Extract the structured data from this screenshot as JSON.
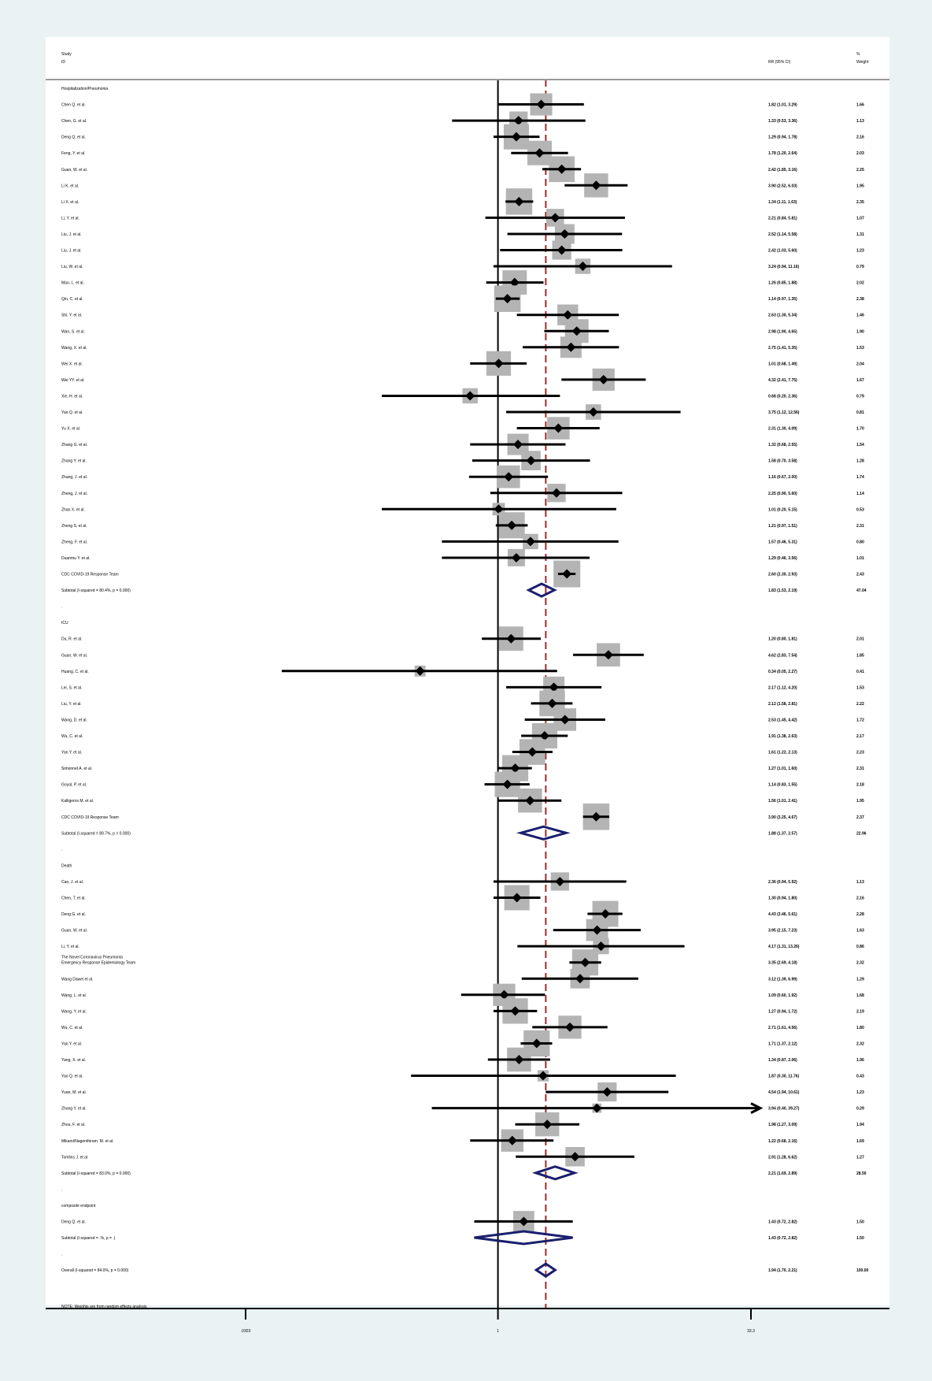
{
  "header": {
    "study_line1": "Study",
    "study_line2": "ID",
    "rr_label": "RR (95% CI)",
    "weight_line1": "%",
    "weight_line2": "Weight"
  },
  "footnote": "NOTE: Weights are from random effects analysis",
  "colors": {
    "background": "#eaf2f3",
    "panel": "#ffffff",
    "box": "#b4b4b4",
    "marker": "#000000",
    "diamond": "#1a1f6e",
    "reference_line": "#9b2b2b"
  },
  "chart_data": {
    "type": "forest",
    "x_scale": "log",
    "xlim": [
      0.0303,
      33.3
    ],
    "x_ticks": [
      {
        "value": 0.0303,
        "label": ".0303"
      },
      {
        "value": 1,
        "label": "1"
      },
      {
        "value": 33.3,
        "label": "33.3"
      }
    ],
    "null_line": 1,
    "overall_line": 1.94,
    "rows": [
      {
        "kind": "group",
        "label": "Hospitalization/Pneumonia"
      },
      {
        "kind": "study",
        "label": "Chen Q. et al.",
        "rr": 1.82,
        "lo": 1.01,
        "hi": 3.29,
        "rr_text": "1.82 (1.01, 3.29)",
        "weight": "1.66"
      },
      {
        "kind": "study",
        "label": "Chen, G. et al.",
        "rr": 1.33,
        "lo": 0.53,
        "hi": 3.36,
        "rr_text": "1.33 (0.53, 3.36)",
        "weight": "1.13"
      },
      {
        "kind": "study",
        "label": "Deng Q. et al.",
        "rr": 1.29,
        "lo": 0.94,
        "hi": 1.78,
        "rr_text": "1.29 (0.94, 1.78)",
        "weight": "2.16"
      },
      {
        "kind": "study",
        "label": "Feng, Y. et al.",
        "rr": 1.78,
        "lo": 1.2,
        "hi": 2.64,
        "rr_text": "1.78 (1.20, 2.64)",
        "weight": "2.03"
      },
      {
        "kind": "study",
        "label": "Guan, W. et al.",
        "rr": 2.42,
        "lo": 1.85,
        "hi": 3.16,
        "rr_text": "2.42 (1.85, 3.16)",
        "weight": "2.25"
      },
      {
        "kind": "study",
        "label": "Li K. et al.",
        "rr": 3.9,
        "lo": 2.52,
        "hi": 6.03,
        "rr_text": "3.90 (2.52, 6.03)",
        "weight": "1.95"
      },
      {
        "kind": "study",
        "label": "Li X. et al.",
        "rr": 1.34,
        "lo": 1.11,
        "hi": 1.63,
        "rr_text": "1.34 (1.11, 1.63)",
        "weight": "2.35"
      },
      {
        "kind": "study",
        "label": "Li, Y. et al.",
        "rr": 2.21,
        "lo": 0.84,
        "hi": 5.81,
        "rr_text": "2.21 (0.84, 5.81)",
        "weight": "1.07"
      },
      {
        "kind": "study",
        "label": "Liu, J. et al.",
        "rr": 2.52,
        "lo": 1.14,
        "hi": 5.58,
        "rr_text": "2.52 (1.14, 5.58)",
        "weight": "1.31"
      },
      {
        "kind": "study",
        "label": "Liu, J. et al.",
        "rr": 2.42,
        "lo": 1.03,
        "hi": 5.6,
        "rr_text": "2.42 (1.03, 5.60)",
        "weight": "1.23"
      },
      {
        "kind": "study",
        "label": "Liu, W. et al.",
        "rr": 3.24,
        "lo": 0.94,
        "hi": 11.16,
        "rr_text": "3.24 (0.94, 11.16)",
        "weight": "0.79"
      },
      {
        "kind": "study",
        "label": "Mao, L. et al.",
        "rr": 1.26,
        "lo": 0.85,
        "hi": 1.88,
        "rr_text": "1.26 (0.85, 1.88)",
        "weight": "2.02"
      },
      {
        "kind": "study",
        "label": "Qin, C. et al.",
        "rr": 1.14,
        "lo": 0.97,
        "hi": 1.35,
        "rr_text": "1.14 (0.97, 1.35)",
        "weight": "2.38"
      },
      {
        "kind": "study",
        "label": "Shi, Y. et al.",
        "rr": 2.63,
        "lo": 1.3,
        "hi": 5.34,
        "rr_text": "2.63 (1.30, 5.34)",
        "weight": "1.46"
      },
      {
        "kind": "study",
        "label": "Wan, S. et al.",
        "rr": 2.98,
        "lo": 1.9,
        "hi": 4.65,
        "rr_text": "2.98 (1.90, 4.65)",
        "weight": "1.90"
      },
      {
        "kind": "study",
        "label": "Wang, X. et al.",
        "rr": 2.75,
        "lo": 1.41,
        "hi": 5.35,
        "rr_text": "2.75 (1.41, 5.35)",
        "weight": "1.53"
      },
      {
        "kind": "study",
        "label": "Wei X. et al.",
        "rr": 1.01,
        "lo": 0.68,
        "hi": 1.49,
        "rr_text": "1.01 (0.68, 1.49)",
        "weight": "2.04"
      },
      {
        "kind": "study",
        "label": "Wei YY. et al.",
        "rr": 4.32,
        "lo": 2.41,
        "hi": 7.75,
        "rr_text": "4.32 (2.41, 7.75)",
        "weight": "1.67"
      },
      {
        "kind": "study",
        "label": "Xie, H. et al.",
        "rr": 0.68,
        "lo": 0.2,
        "hi": 2.36,
        "rr_text": "0.68 (0.20, 2.36)",
        "weight": "0.79"
      },
      {
        "kind": "study",
        "label": "Yao Q. et al.",
        "rr": 3.75,
        "lo": 1.12,
        "hi": 12.56,
        "rr_text": "3.75 (1.12, 12.56)",
        "weight": "0.81"
      },
      {
        "kind": "study",
        "label": "Yu X. et al.",
        "rr": 2.31,
        "lo": 1.3,
        "hi": 4.09,
        "rr_text": "2.31 (1.30, 4.09)",
        "weight": "1.70"
      },
      {
        "kind": "study",
        "label": "Zhang G. et al.",
        "rr": 1.32,
        "lo": 0.68,
        "hi": 2.55,
        "rr_text": "1.32 (0.68, 2.55)",
        "weight": "1.54"
      },
      {
        "kind": "study",
        "label": "Zhang Y. et al.",
        "rr": 1.58,
        "lo": 0.7,
        "hi": 3.58,
        "rr_text": "1.58 (0.70, 3.58)",
        "weight": "1.28"
      },
      {
        "kind": "study",
        "label": "Zhang, J. et al.",
        "rr": 1.16,
        "lo": 0.67,
        "hi": 2.0,
        "rr_text": "1.16 (0.67, 2.00)",
        "weight": "1.74"
      },
      {
        "kind": "study",
        "label": "Zheng, J. et al.",
        "rr": 2.25,
        "lo": 0.9,
        "hi": 5.6,
        "rr_text": "2.25 (0.90, 5.60)",
        "weight": "1.14"
      },
      {
        "kind": "study",
        "label": "Zhao X. et al.",
        "rr": 1.01,
        "lo": 0.2,
        "hi": 5.15,
        "rr_text": "1.01 (0.20, 5.15)",
        "weight": "0.53"
      },
      {
        "kind": "study",
        "label": "Zheng S. et al.",
        "rr": 1.21,
        "lo": 0.97,
        "hi": 1.51,
        "rr_text": "1.21 (0.97, 1.51)",
        "weight": "2.31"
      },
      {
        "kind": "study",
        "label": "Zheng, F. et al.",
        "rr": 1.57,
        "lo": 0.46,
        "hi": 5.31,
        "rr_text": "1.57 (0.46, 5.31)",
        "weight": "0.80"
      },
      {
        "kind": "study",
        "label": "Duanmu Y. et al.",
        "rr": 1.29,
        "lo": 0.46,
        "hi": 3.56,
        "rr_text": "1.29 (0.46, 3.56)",
        "weight": "1.01"
      },
      {
        "kind": "study",
        "label": "CDC COVID-19 Response Team",
        "rr": 2.6,
        "lo": 2.3,
        "hi": 2.93,
        "rr_text": "2.60 (2.30, 2.93)",
        "weight": "2.43"
      },
      {
        "kind": "subtotal",
        "label": "Subtotal  (I-squared = 80.4%, p = 0.000)",
        "rr": 1.83,
        "lo": 1.53,
        "hi": 2.19,
        "rr_text": "1.83 (1.53, 2.19)",
        "weight": "47.04"
      },
      {
        "kind": "spacer",
        "label": "."
      },
      {
        "kind": "group",
        "label": "ICU"
      },
      {
        "kind": "study",
        "label": "Du, R. et al.",
        "rr": 1.2,
        "lo": 0.8,
        "hi": 1.81,
        "rr_text": "1.20 (0.80, 1.81)",
        "weight": "2.01"
      },
      {
        "kind": "study",
        "label": "Guan, W. et al.",
        "rr": 4.62,
        "lo": 2.83,
        "hi": 7.54,
        "rr_text": "4.62 (2.83, 7.54)",
        "weight": "1.85"
      },
      {
        "kind": "study",
        "label": "Huang, C. et al.",
        "rr": 0.34,
        "lo": 0.05,
        "hi": 2.27,
        "rr_text": "0.34 (0.05, 2.27)",
        "weight": "0.41"
      },
      {
        "kind": "study",
        "label": "Lei, S. et al.",
        "rr": 2.17,
        "lo": 1.12,
        "hi": 4.2,
        "rr_text": "2.17 (1.12, 4.20)",
        "weight": "1.53"
      },
      {
        "kind": "study",
        "label": "Liu, Y. et al.",
        "rr": 2.12,
        "lo": 1.58,
        "hi": 2.81,
        "rr_text": "2.12 (1.58, 2.81)",
        "weight": "2.22"
      },
      {
        "kind": "study",
        "label": "Wang, D. et al.",
        "rr": 2.53,
        "lo": 1.45,
        "hi": 4.42,
        "rr_text": "2.53 (1.45, 4.42)",
        "weight": "1.72"
      },
      {
        "kind": "study",
        "label": "Wu, C. et al.",
        "rr": 1.91,
        "lo": 1.38,
        "hi": 2.63,
        "rr_text": "1.91 (1.38, 2.63)",
        "weight": "2.17"
      },
      {
        "kind": "study",
        "label": "Yan Y. et al.",
        "rr": 1.61,
        "lo": 1.22,
        "hi": 2.13,
        "rr_text": "1.61 (1.22, 2.13)",
        "weight": "2.23"
      },
      {
        "kind": "study",
        "label": "Simonnet A. et al.",
        "rr": 1.27,
        "lo": 1.01,
        "hi": 1.6,
        "rr_text": "1.27 (1.01, 1.60)",
        "weight": "2.31"
      },
      {
        "kind": "study",
        "label": "Goyal, P. et al.",
        "rr": 1.14,
        "lo": 0.83,
        "hi": 1.55,
        "rr_text": "1.14 (0.83, 1.55)",
        "weight": "2.18"
      },
      {
        "kind": "study",
        "label": "Kalligeros M. et al.",
        "rr": 1.56,
        "lo": 1.01,
        "hi": 2.41,
        "rr_text": "1.56 (1.01, 2.41)",
        "weight": "1.95"
      },
      {
        "kind": "study",
        "label": "CDC COVID-19 Response Team",
        "rr": 3.9,
        "lo": 3.25,
        "hi": 4.67,
        "rr_text": "3.90 (3.25, 4.67)",
        "weight": "2.37"
      },
      {
        "kind": "subtotal",
        "label": "Subtotal  (I-squared = 89.7%, p = 0.000)",
        "rr": 1.88,
        "lo": 1.37,
        "hi": 2.57,
        "rr_text": "1.88 (1.37, 2.57)",
        "weight": "22.96"
      },
      {
        "kind": "spacer",
        "label": "."
      },
      {
        "kind": "group",
        "label": "Death"
      },
      {
        "kind": "study",
        "label": "Cao, J. et al.",
        "rr": 2.36,
        "lo": 0.94,
        "hi": 5.92,
        "rr_text": "2.36 (0.94, 5.92)",
        "weight": "1.13"
      },
      {
        "kind": "study",
        "label": "Chen, T. et al.",
        "rr": 1.3,
        "lo": 0.94,
        "hi": 1.8,
        "rr_text": "1.30 (0.94, 1.80)",
        "weight": "2.16"
      },
      {
        "kind": "study",
        "label": "Deng G. et al.",
        "rr": 4.43,
        "lo": 3.46,
        "hi": 5.61,
        "rr_text": "4.43 (3.46, 5.61)",
        "weight": "2.28"
      },
      {
        "kind": "study",
        "label": "Guan, W. et al.",
        "rr": 3.95,
        "lo": 2.15,
        "hi": 7.23,
        "rr_text": "3.95 (2.15, 7.23)",
        "weight": "1.63"
      },
      {
        "kind": "study",
        "label": "Li, Y. et al.",
        "rr": 4.17,
        "lo": 1.31,
        "hi": 13.26,
        "rr_text": "4.17 (1.31, 13.26)",
        "weight": "0.86"
      },
      {
        "kind": "study",
        "label": "The Novel Coronavirus Pneumonia\nEmergency Response Epidemiology Team",
        "rr": 3.35,
        "lo": 2.69,
        "hi": 4.18,
        "rr_text": "3.35 (2.69, 4.18)",
        "weight": "2.32"
      },
      {
        "kind": "study",
        "label": "Wang Dawei et al.",
        "rr": 3.12,
        "lo": 1.39,
        "hi": 6.99,
        "rr_text": "3.12 (1.39, 6.99)",
        "weight": "1.29"
      },
      {
        "kind": "study",
        "label": "Wang, L. et al.",
        "rr": 1.09,
        "lo": 0.6,
        "hi": 1.92,
        "rr_text": "1.09 (0.60, 1.92)",
        "weight": "1.68"
      },
      {
        "kind": "study",
        "label": "Wang, Y. et al.",
        "rr": 1.27,
        "lo": 0.94,
        "hi": 1.72,
        "rr_text": "1.27 (0.94, 1.72)",
        "weight": "2.19"
      },
      {
        "kind": "study",
        "label": "Wu, C. et al.",
        "rr": 2.71,
        "lo": 1.61,
        "hi": 4.56,
        "rr_text": "2.71 (1.61, 4.56)",
        "weight": "1.80"
      },
      {
        "kind": "study",
        "label": "Yan Y. et al.",
        "rr": 1.71,
        "lo": 1.37,
        "hi": 2.12,
        "rr_text": "1.71 (1.37, 2.12)",
        "weight": "2.32"
      },
      {
        "kind": "study",
        "label": "Yang, X. et al.",
        "rr": 1.34,
        "lo": 0.87,
        "hi": 2.06,
        "rr_text": "1.34 (0.87, 2.06)",
        "weight": "1.96"
      },
      {
        "kind": "study",
        "label": "Yao Q. et al.",
        "rr": 1.87,
        "lo": 0.3,
        "hi": 11.76,
        "rr_text": "1.87 (0.30, 11.76)",
        "weight": "0.43"
      },
      {
        "kind": "study",
        "label": "Yuan, M. et al.",
        "rr": 4.54,
        "lo": 1.94,
        "hi": 10.61,
        "rr_text": "4.54 (1.94, 10.61)",
        "weight": "1.23"
      },
      {
        "kind": "study",
        "label": "Zhang Y. et al.",
        "rr": 3.94,
        "lo": 0.4,
        "hi": 39.27,
        "rr_text": "3.94 (0.40, 39.27)",
        "weight": "0.29",
        "arrow_right": true
      },
      {
        "kind": "study",
        "label": "Zhou, F. et al.",
        "rr": 1.98,
        "lo": 1.27,
        "hi": 3.09,
        "rr_text": "1.98 (1.27, 3.09)",
        "weight": "1.94"
      },
      {
        "kind": "study",
        "label": "Mikami/Nagenthiram. M. et al.",
        "rr": 1.22,
        "lo": 0.68,
        "hi": 2.16,
        "rr_text": "1.22 (0.68, 2.16)",
        "weight": "1.69"
      },
      {
        "kind": "study",
        "label": "Tomlins J. et al.",
        "rr": 2.91,
        "lo": 1.28,
        "hi": 6.62,
        "rr_text": "2.91 (1.28, 6.62)",
        "weight": "1.27"
      },
      {
        "kind": "subtotal",
        "label": "Subtotal  (I-squared = 83.0%, p = 0.000)",
        "rr": 2.21,
        "lo": 1.69,
        "hi": 2.89,
        "rr_text": "2.21 (1.69, 2.89)",
        "weight": "28.50"
      },
      {
        "kind": "spacer",
        "label": "."
      },
      {
        "kind": "group",
        "label": "composite endpoint"
      },
      {
        "kind": "study",
        "label": "Deng Q. et al.",
        "rr": 1.43,
        "lo": 0.72,
        "hi": 2.82,
        "rr_text": "1.43 (0.72, 2.82)",
        "weight": "1.50"
      },
      {
        "kind": "subtotal",
        "label": "Subtotal  (I-squared = .%, p = .)",
        "rr": 1.43,
        "lo": 0.72,
        "hi": 2.82,
        "rr_text": "1.43 (0.72, 2.82)",
        "weight": "1.50"
      },
      {
        "kind": "spacer",
        "label": "."
      },
      {
        "kind": "overall",
        "label": "Overall  (I-squared = 84.0%, p = 0.000)",
        "rr": 1.94,
        "lo": 1.7,
        "hi": 2.21,
        "rr_text": "1.94 (1.70, 2.21)",
        "weight": "100.00"
      },
      {
        "kind": "spacer",
        "label": ""
      }
    ]
  }
}
